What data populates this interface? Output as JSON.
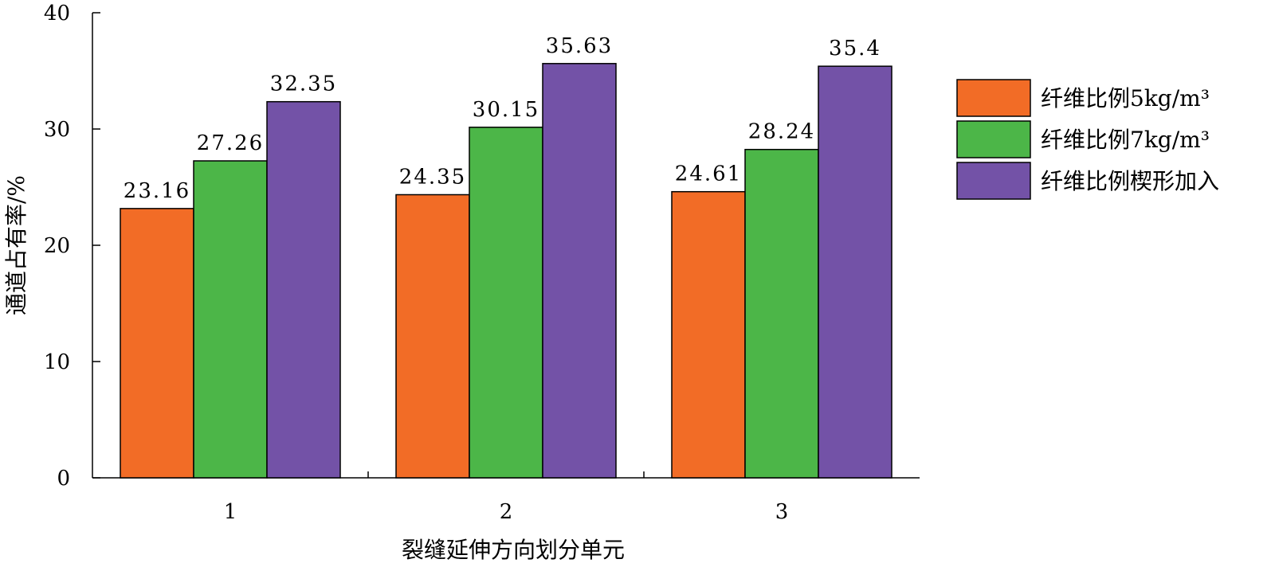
{
  "chart_data": {
    "type": "bar",
    "title": "",
    "xlabel": "裂缝延伸方向划分单元",
    "ylabel": "通道占有率/%",
    "categories": [
      "1",
      "2",
      "3"
    ],
    "ylim": [
      0,
      40
    ],
    "yticks": [
      0,
      10,
      20,
      30,
      40
    ],
    "grid": false,
    "legend_position": "right",
    "series": [
      {
        "name": "纤维比例5kg/m³",
        "color": "#f26c26",
        "values": [
          23.16,
          24.35,
          24.61
        ],
        "labels": [
          "23.16",
          "24.35",
          "24.61"
        ]
      },
      {
        "name": "纤维比例7kg/m³",
        "color": "#4cb648",
        "values": [
          27.26,
          30.15,
          28.24
        ],
        "labels": [
          "27.26",
          "30.15",
          "28.24"
        ]
      },
      {
        "name": "纤维比例楔形加入",
        "color": "#7352a7",
        "values": [
          32.35,
          35.63,
          35.4
        ],
        "labels": [
          "32.35",
          "35.63",
          "35.4"
        ]
      }
    ]
  }
}
